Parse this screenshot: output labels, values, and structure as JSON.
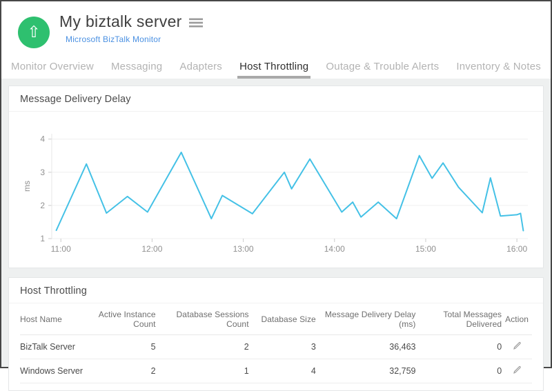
{
  "header": {
    "title": "My biztalk server",
    "subtitle_link": "Microsoft BizTalk Monitor",
    "icons": {
      "status": "up-arrow",
      "menu": "hamburger"
    },
    "colors": {
      "status_green": "#2ec06f",
      "link_blue": "#4a90e2"
    }
  },
  "tabs": {
    "items": [
      {
        "label": "Monitor Overview",
        "active": false
      },
      {
        "label": "Messaging",
        "active": false
      },
      {
        "label": "Adapters",
        "active": false
      },
      {
        "label": "Host Throttling",
        "active": true
      },
      {
        "label": "Outage & Trouble Alerts",
        "active": false
      },
      {
        "label": "Inventory & Notes",
        "active": false
      }
    ]
  },
  "chart_card": {
    "title": "Message Delivery Delay"
  },
  "chart_data": {
    "type": "line",
    "title": "Message Delivery Delay",
    "xlabel": "",
    "ylabel": "ms",
    "ylim": [
      1,
      4
    ],
    "yticks": [
      1,
      2,
      3,
      4
    ],
    "xticks": [
      {
        "t": 11,
        "label": "11:00"
      },
      {
        "t": 12,
        "label": "12:00"
      },
      {
        "t": 13,
        "label": "13:00"
      },
      {
        "t": 14,
        "label": "14:00"
      },
      {
        "t": 15,
        "label": "15:00"
      },
      {
        "t": 16,
        "label": "16:00"
      }
    ],
    "grid": "horizontal",
    "legend": "none",
    "line_color": "#44c1e6",
    "axis_color": "#e7e7e7",
    "grid_color": "#efefef",
    "tick_color": "#cccccc",
    "label_color": "#8f8f8f",
    "draw_xlim": [
      10.9,
      16.12
    ],
    "draw_ylim": [
      1,
      4.16
    ],
    "series": [
      {
        "name": "Message Delivery Delay (ms)",
        "points": [
          [
            10.95,
            1.25
          ],
          [
            11.28,
            3.25
          ],
          [
            11.5,
            1.77
          ],
          [
            11.73,
            2.27
          ],
          [
            11.95,
            1.8
          ],
          [
            12.32,
            3.6
          ],
          [
            12.65,
            1.6
          ],
          [
            12.77,
            2.3
          ],
          [
            13.1,
            1.75
          ],
          [
            13.45,
            3.0
          ],
          [
            13.53,
            2.5
          ],
          [
            13.73,
            3.4
          ],
          [
            14.08,
            1.8
          ],
          [
            14.2,
            2.1
          ],
          [
            14.29,
            1.65
          ],
          [
            14.48,
            2.1
          ],
          [
            14.68,
            1.6
          ],
          [
            14.93,
            3.5
          ],
          [
            15.07,
            2.82
          ],
          [
            15.19,
            3.28
          ],
          [
            15.36,
            2.55
          ],
          [
            15.62,
            1.78
          ],
          [
            15.71,
            2.83
          ],
          [
            15.82,
            1.68
          ],
          [
            16.0,
            1.72
          ],
          [
            16.04,
            1.76
          ],
          [
            16.07,
            1.24
          ]
        ]
      }
    ]
  },
  "table_card": {
    "title": "Host Throttling",
    "columns": [
      "Host Name",
      "Active Instance Count",
      "Database Sessions Count",
      "Database Size",
      "Message Delivery Delay (ms)",
      "Total Messages Delivered",
      "Action"
    ],
    "rows": [
      {
        "cells": [
          "BizTalk Server",
          "5",
          "2",
          "3",
          "36,463",
          "0"
        ]
      },
      {
        "cells": [
          "Windows Server",
          "2",
          "1",
          "4",
          "32,759",
          "0"
        ]
      }
    ],
    "action_icon": "pencil"
  }
}
